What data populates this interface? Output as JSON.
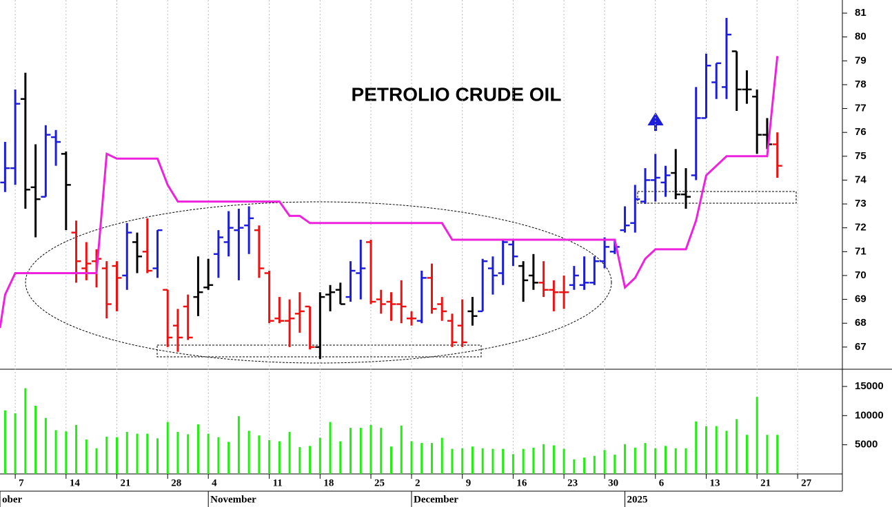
{
  "chart_data": [
    {
      "type": "ohlc",
      "title": "PETROLIO CRUDE OIL",
      "x": [
        0,
        1,
        2,
        3,
        4,
        5,
        6,
        7,
        8,
        9,
        10,
        11,
        12,
        13,
        14,
        15,
        16,
        17,
        18,
        19,
        20,
        21,
        22,
        23,
        24,
        25,
        26,
        27,
        28,
        29,
        30,
        31,
        32,
        33,
        34,
        35,
        36,
        37,
        38,
        39,
        40,
        41,
        42,
        43,
        44,
        45,
        46,
        47,
        48,
        49,
        50,
        51,
        52,
        53,
        54,
        55,
        56,
        57,
        58,
        59,
        60,
        61,
        62,
        63,
        64,
        65,
        66,
        67,
        68,
        69,
        70,
        71,
        72,
        73,
        74,
        75,
        76
      ],
      "open": [
        73.9,
        74.5,
        77.4,
        73.7,
        73.3,
        75.8,
        75.1,
        71.8,
        70.3,
        70.6,
        70.3,
        70.4,
        70.0,
        71.4,
        71.0,
        70.3,
        69.4,
        67.9,
        68.7,
        69.1,
        69.5,
        70.9,
        71.4,
        71.9,
        72.1,
        71.9,
        70.1,
        68.2,
        68.1,
        68.4,
        68.7,
        67.0,
        69.2,
        69.4,
        69.1,
        70.1,
        71.4,
        69.0,
        68.9,
        68.8,
        68.2,
        68.1,
        69.9,
        68.8,
        68.1,
        67.9,
        68.5,
        68.5,
        70.3,
        70.1,
        71.3,
        70.4,
        70.0,
        69.7,
        69.4,
        69.3,
        69.6,
        69.6,
        69.7,
        70.6,
        71.0,
        71.9,
        72.2,
        73.1,
        74.0,
        73.9,
        74.3,
        73.4,
        74.2,
        76.6,
        78.1,
        77.9,
        79.4,
        77.8,
        77.5,
        75.9,
        75.5
      ],
      "high": [
        75.6,
        77.8,
        78.5,
        75.5,
        76.3,
        76.1,
        75.2,
        72.3,
        71.4,
        71.1,
        70.6,
        70.6,
        72.2,
        71.8,
        72.4,
        71.9,
        69.4,
        68.6,
        69.2,
        70.8,
        70.7,
        71.9,
        72.7,
        72.8,
        72.9,
        72.1,
        70.2,
        69.1,
        69.0,
        69.3,
        68.7,
        69.3,
        69.6,
        69.7,
        70.6,
        71.5,
        71.5,
        69.4,
        69.3,
        69.8,
        68.5,
        70.2,
        70.5,
        69.1,
        68.4,
        69.0,
        69.1,
        70.7,
        70.8,
        71.5,
        71.5,
        70.6,
        70.9,
        70.6,
        69.8,
        70.0,
        70.4,
        70.8,
        70.8,
        71.6,
        71.5,
        72.9,
        73.8,
        74.5,
        75.1,
        74.6,
        75.3,
        74.5,
        77.9,
        79.3,
        78.9,
        80.8,
        79.4,
        78.6,
        77.8,
        76.6,
        76.0
      ],
      "low": [
        73.5,
        73.8,
        72.8,
        71.6,
        73.3,
        74.6,
        71.9,
        69.7,
        69.8,
        69.5,
        68.2,
        68.5,
        69.4,
        70.1,
        70.1,
        69.9,
        67.0,
        66.8,
        67.3,
        68.3,
        69.4,
        69.9,
        70.8,
        69.8,
        70.9,
        69.9,
        68.0,
        68.0,
        67.0,
        67.6,
        66.9,
        66.5,
        68.5,
        68.8,
        68.9,
        69.0,
        68.8,
        68.4,
        68.1,
        68.0,
        67.9,
        68.0,
        68.4,
        68.1,
        67.0,
        67.0,
        67.9,
        68.5,
        69.2,
        69.6,
        70.4,
        68.9,
        69.4,
        69.1,
        68.5,
        68.6,
        69.4,
        69.4,
        69.6,
        70.3,
        70.9,
        71.8,
        71.8,
        73.0,
        73.1,
        73.3,
        73.2,
        72.8,
        74.0,
        76.6,
        77.4,
        77.4,
        76.9,
        77.2,
        75.1,
        75.3,
        74.1
      ],
      "close": [
        74.5,
        77.2,
        73.6,
        73.2,
        75.9,
        75.6,
        73.8,
        70.6,
        70.5,
        70.7,
        68.8,
        69.9,
        71.8,
        70.8,
        70.2,
        71.9,
        67.4,
        67.4,
        67.4,
        69.3,
        69.6,
        71.6,
        72.0,
        72.0,
        72.4,
        70.3,
        68.1,
        68.1,
        68.2,
        68.5,
        67.0,
        69.1,
        69.3,
        68.8,
        70.2,
        70.3,
        68.9,
        68.8,
        68.8,
        68.7,
        68.2,
        69.9,
        68.6,
        68.5,
        67.2,
        67.2,
        68.3,
        70.6,
        70.0,
        71.4,
        70.8,
        69.8,
        69.7,
        69.4,
        69.3,
        69.3,
        70.0,
        69.7,
        70.6,
        71.2,
        71.2,
        72.1,
        73.2,
        74.0,
        74.1,
        74.2,
        73.4,
        73.3,
        76.6,
        78.8,
        78.9,
        80.1,
        77.8,
        77.8,
        75.9,
        75.5,
        74.6
      ],
      "colors": [
        "#1c1cdc",
        "#1c1cdc",
        "#000000",
        "#000000",
        "#1c1cdc",
        "#1c1cdc",
        "#000000",
        "#ee1111",
        "#ee1111",
        "#ee1111",
        "#ee1111",
        "#ee1111",
        "#1c1cdc",
        "#000000",
        "#ee1111",
        "#1c1cdc",
        "#ee1111",
        "#ee1111",
        "#ee1111",
        "#000000",
        "#000000",
        "#1c1cdc",
        "#1c1cdc",
        "#1c1cdc",
        "#1c1cdc",
        "#ee1111",
        "#ee1111",
        "#ee1111",
        "#ee1111",
        "#ee1111",
        "#ee1111",
        "#000000",
        "#000000",
        "#000000",
        "#1c1cdc",
        "#1c1cdc",
        "#ee1111",
        "#ee1111",
        "#ee1111",
        "#ee1111",
        "#ee1111",
        "#1c1cdc",
        "#ee1111",
        "#ee1111",
        "#ee1111",
        "#ee1111",
        "#000000",
        "#1c1cdc",
        "#1c1cdc",
        "#1c1cdc",
        "#1c1cdc",
        "#000000",
        "#000000",
        "#ee1111",
        "#ee1111",
        "#ee1111",
        "#1c1cdc",
        "#1c1cdc",
        "#1c1cdc",
        "#1c1cdc",
        "#1c1cdc",
        "#1c1cdc",
        "#1c1cdc",
        "#1c1cdc",
        "#1c1cdc",
        "#1c1cdc",
        "#000000",
        "#000000",
        "#1c1cdc",
        "#1c1cdc",
        "#1c1cdc",
        "#1c1cdc",
        "#000000",
        "#000000",
        "#000000",
        "#000000",
        "#ee1111"
      ],
      "line": {
        "color": "#ee22dd",
        "x": [
          -0.5,
          0,
          1,
          9,
          10,
          11,
          15,
          16,
          17,
          27,
          28,
          29,
          30,
          43,
          44,
          60,
          61,
          62,
          63,
          64,
          67,
          68,
          69,
          71,
          75,
          76
        ],
        "values": [
          67.8,
          69.2,
          70.1,
          70.1,
          75.1,
          74.9,
          74.9,
          73.8,
          73.1,
          73.1,
          72.5,
          72.5,
          72.2,
          72.2,
          71.5,
          71.5,
          69.5,
          69.9,
          70.7,
          71.1,
          71.1,
          72.3,
          74.2,
          75.0,
          75.0,
          79.2
        ]
      },
      "xlim": [
        -0.5,
        82.4
      ],
      "ylim": [
        66.1,
        81.55
      ],
      "yticks": [
        67,
        68,
        69,
        70,
        71,
        72,
        73,
        74,
        75,
        76,
        77,
        78,
        79,
        80,
        81
      ],
      "xticks": [
        {
          "value": 1,
          "label": "7"
        },
        {
          "value": 6,
          "label": "14"
        },
        {
          "value": 11,
          "label": "21"
        },
        {
          "value": 16,
          "label": "28"
        },
        {
          "value": 20,
          "label": "4"
        },
        {
          "value": 26,
          "label": "11"
        },
        {
          "value": 31,
          "label": "18"
        },
        {
          "value": 36,
          "label": "25"
        },
        {
          "value": 40,
          "label": "2"
        },
        {
          "value": 45,
          "label": "9"
        },
        {
          "value": 50,
          "label": "16"
        },
        {
          "value": 55,
          "label": "23"
        },
        {
          "value": 59,
          "label": "30"
        },
        {
          "value": 64,
          "label": "6"
        },
        {
          "value": 69,
          "label": "13"
        },
        {
          "value": 74,
          "label": "21"
        },
        {
          "value": 78,
          "label": "27"
        }
      ],
      "period_labels": [
        {
          "label": "ober",
          "x": -0.5
        },
        {
          "label": "November",
          "x": 20
        },
        {
          "label": "December",
          "x": 40
        },
        {
          "label": "2025",
          "x": 61
        }
      ]
    },
    {
      "type": "bar",
      "color": "#22ee11",
      "x": [
        0,
        1,
        2,
        3,
        4,
        5,
        6,
        7,
        8,
        9,
        10,
        11,
        12,
        13,
        14,
        15,
        16,
        17,
        18,
        19,
        20,
        21,
        22,
        23,
        24,
        25,
        26,
        27,
        28,
        29,
        30,
        31,
        32,
        33,
        34,
        35,
        36,
        37,
        38,
        39,
        40,
        41,
        42,
        43,
        44,
        45,
        46,
        47,
        48,
        49,
        50,
        51,
        52,
        53,
        54,
        55,
        56,
        57,
        58,
        59,
        60,
        61,
        62,
        63,
        64,
        65,
        66,
        67,
        68,
        69,
        70,
        71,
        72,
        73,
        74,
        75,
        76
      ],
      "values": [
        10900,
        10400,
        14700,
        11700,
        9600,
        7500,
        7300,
        8400,
        5900,
        4400,
        6400,
        6300,
        7200,
        6900,
        6900,
        6100,
        8900,
        7200,
        6800,
        8500,
        6900,
        6300,
        5500,
        9900,
        7400,
        6600,
        5800,
        5600,
        7200,
        4600,
        4800,
        6200,
        8900,
        5600,
        7900,
        7900,
        8400,
        7900,
        4700,
        8300,
        5600,
        5300,
        5300,
        6200,
        4300,
        4400,
        4700,
        4400,
        4300,
        4300,
        3400,
        4300,
        4500,
        5100,
        4900,
        4300,
        2500,
        2800,
        3100,
        4100,
        3300,
        5100,
        4500,
        5300,
        4400,
        4800,
        4400,
        4400,
        9000,
        8200,
        8200,
        7400,
        9400,
        6700,
        13200,
        6700,
        6700
      ],
      "xlim": [
        -0.5,
        82.4
      ],
      "ylim": [
        0,
        17950
      ],
      "yticks": [
        5000,
        10000,
        15000
      ]
    }
  ]
}
